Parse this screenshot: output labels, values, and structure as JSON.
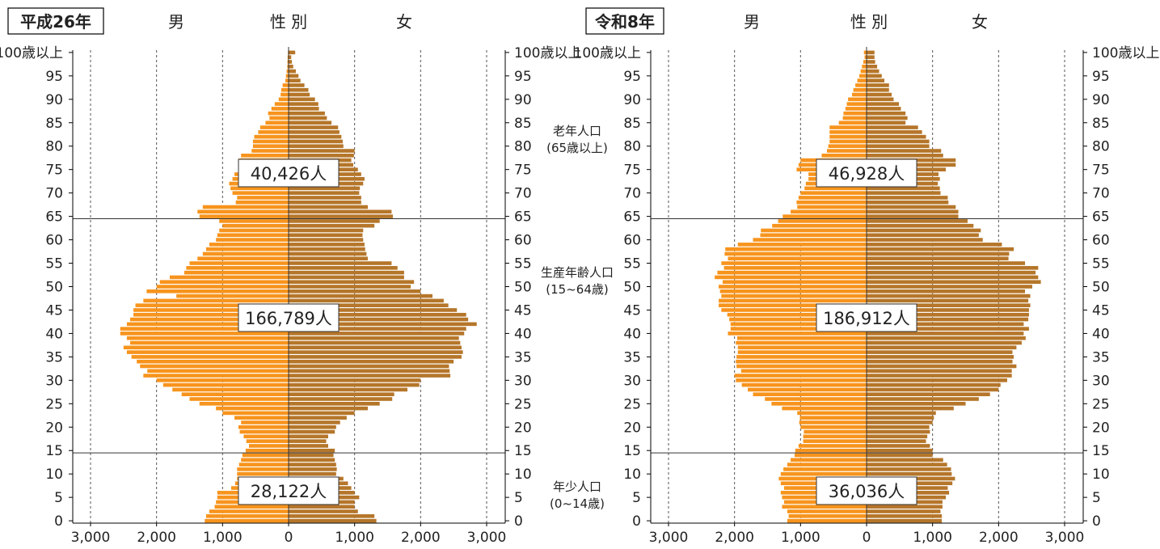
{
  "headers": {
    "male": "男",
    "sex": "性 別",
    "female": "女"
  },
  "age_tick_labels": [
    "0",
    "5",
    "10",
    "15",
    "20",
    "25",
    "30",
    "35",
    "40",
    "45",
    "50",
    "55",
    "60",
    "65",
    "70",
    "75",
    "80",
    "85",
    "90",
    "95",
    "100歳以上"
  ],
  "value_tick_labels": [
    "3,000",
    "2,000",
    "1,000",
    "0",
    "1,000",
    "2,000",
    "3,000"
  ],
  "middle_labels": {
    "elderly": [
      "老年人口",
      "(65歳以上)"
    ],
    "working": [
      "生産年齢人口",
      "(15~64歳)"
    ],
    "young": [
      "年少人口",
      "(0~14歳)"
    ]
  },
  "colors": {
    "male": "#f7941d",
    "female": "#b5762a"
  },
  "chart_data": [
    {
      "type": "bar",
      "orientation": "horizontal-pyramid",
      "title": "平成26年",
      "categories": "ages 0..100 (100 = 100歳以上)",
      "xlim": [
        -3000,
        3000
      ],
      "reference_ages": [
        15,
        65
      ],
      "annotations": [
        {
          "group": "老年人口",
          "label": "40,426人"
        },
        {
          "group": "生産年齢人口",
          "label": "166,789人"
        },
        {
          "group": "年少人口",
          "label": "28,122人"
        }
      ],
      "series": [
        {
          "name": "男",
          "values": [
            1270,
            1250,
            1200,
            1120,
            1100,
            1080,
            1080,
            870,
            810,
            780,
            780,
            780,
            750,
            720,
            700,
            650,
            600,
            640,
            680,
            740,
            760,
            720,
            820,
            1000,
            1100,
            1350,
            1500,
            1620,
            1760,
            1900,
            2000,
            2200,
            2140,
            2250,
            2300,
            2380,
            2450,
            2500,
            2400,
            2450,
            2550,
            2550,
            2450,
            2400,
            2350,
            2350,
            2320,
            2200,
            1700,
            2150,
            2000,
            1950,
            1800,
            1580,
            1550,
            1500,
            1380,
            1300,
            1250,
            1200,
            1100,
            1080,
            1050,
            1000,
            1050,
            1350,
            1380,
            1300,
            800,
            780,
            850,
            880,
            900,
            850,
            820,
            740,
            680,
            750,
            720,
            560,
            540,
            540,
            520,
            460,
            430,
            350,
            290,
            310,
            260,
            210,
            150,
            120,
            110,
            90,
            50,
            40,
            30,
            20,
            18,
            15,
            10
          ]
        },
        {
          "name": "女",
          "values": [
            1330,
            1300,
            1050,
            1000,
            1000,
            1070,
            1000,
            950,
            900,
            830,
            720,
            730,
            720,
            700,
            680,
            700,
            600,
            570,
            600,
            700,
            720,
            780,
            880,
            1000,
            1200,
            1380,
            1570,
            1600,
            1800,
            1980,
            2000,
            2450,
            2440,
            2430,
            2500,
            2620,
            2640,
            2620,
            2600,
            2580,
            2660,
            2690,
            2850,
            2720,
            2690,
            2550,
            2420,
            2350,
            2180,
            2000,
            1850,
            1900,
            1750,
            1750,
            1650,
            1560,
            1200,
            1180,
            1160,
            1150,
            1130,
            1120,
            1130,
            1300,
            1380,
            1580,
            1560,
            1200,
            1100,
            1100,
            1070,
            1080,
            1130,
            1150,
            1100,
            1050,
            980,
            950,
            990,
            1000,
            830,
            820,
            800,
            770,
            750,
            650,
            580,
            550,
            460,
            450,
            400,
            320,
            300,
            240,
            180,
            150,
            110,
            70,
            50,
            40,
            100
          ]
        }
      ]
    },
    {
      "type": "bar",
      "orientation": "horizontal-pyramid",
      "title": "令和8年",
      "categories": "ages 0..100 (100 = 100歳以上)",
      "xlim": [
        -3000,
        3000
      ],
      "reference_ages": [
        15,
        65
      ],
      "annotations": [
        {
          "group": "老年人口",
          "label": "46,928人"
        },
        {
          "group": "生産年齢人口",
          "label": "186,912人"
        },
        {
          "group": "年少人口",
          "label": "36,036人"
        }
      ],
      "series": [
        {
          "name": "男",
          "values": [
            1200,
            1180,
            1200,
            1280,
            1250,
            1280,
            1300,
            1250,
            1300,
            1330,
            1300,
            1260,
            1200,
            1150,
            1090,
            1080,
            1030,
            960,
            960,
            950,
            1000,
            1020,
            1010,
            1050,
            1280,
            1440,
            1540,
            1720,
            1800,
            1890,
            1980,
            2000,
            1900,
            1970,
            1980,
            1970,
            1950,
            1950,
            1980,
            1960,
            2100,
            2060,
            2060,
            2080,
            2110,
            2200,
            2240,
            2240,
            2200,
            2220,
            2240,
            2180,
            2300,
            2260,
            2160,
            2200,
            2100,
            2150,
            2140,
            1950,
            1720,
            1610,
            1600,
            1430,
            1340,
            1270,
            1150,
            1050,
            1060,
            1030,
            1000,
            940,
            920,
            880,
            880,
            1060,
            1030,
            1000,
            680,
            600,
            580,
            560,
            560,
            560,
            560,
            420,
            360,
            350,
            320,
            300,
            280,
            220,
            200,
            170,
            140,
            110,
            90,
            70,
            50,
            30,
            40
          ]
        },
        {
          "name": "女",
          "values": [
            1140,
            1140,
            1120,
            1150,
            1150,
            1200,
            1250,
            1230,
            1300,
            1340,
            1290,
            1280,
            1220,
            1160,
            1000,
            1000,
            960,
            900,
            920,
            960,
            950,
            1000,
            1020,
            1050,
            1320,
            1500,
            1700,
            1870,
            2000,
            2030,
            2130,
            2200,
            2200,
            2270,
            2210,
            2230,
            2210,
            2270,
            2350,
            2410,
            2380,
            2460,
            2380,
            2450,
            2460,
            2460,
            2480,
            2450,
            2480,
            2400,
            2510,
            2640,
            2600,
            2560,
            2600,
            2400,
            2150,
            2160,
            2230,
            2050,
            1760,
            1700,
            1730,
            1620,
            1530,
            1390,
            1390,
            1350,
            1240,
            1230,
            1120,
            1110,
            1080,
            1110,
            1090,
            1200,
            1350,
            1350,
            1160,
            1130,
            950,
            950,
            900,
            840,
            780,
            590,
            620,
            590,
            520,
            490,
            410,
            380,
            340,
            340,
            270,
            230,
            190,
            160,
            130,
            120,
            120
          ]
        }
      ]
    }
  ]
}
